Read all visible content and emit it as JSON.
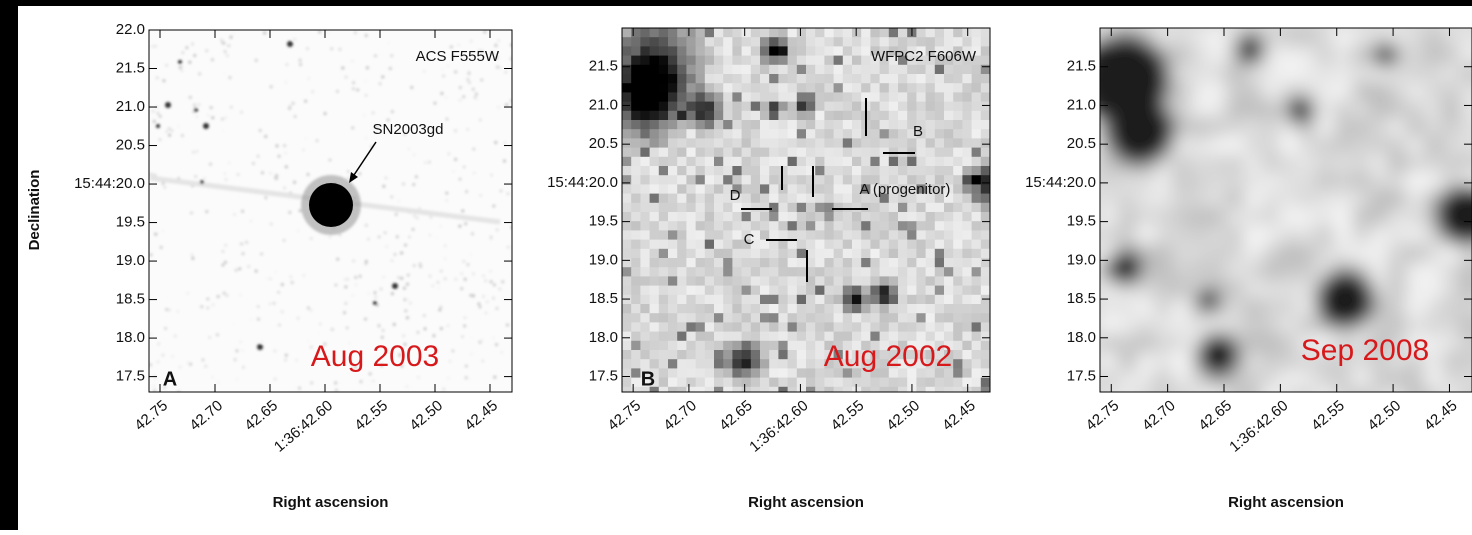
{
  "figure": {
    "ylabel": "Declination",
    "panels": [
      {
        "letter": "A",
        "instrument": "ACS F555W",
        "date": "Aug 2003",
        "xlabel": "Right ascension",
        "annotations": [
          "SN2003gd"
        ],
        "xlim": [
          42.76,
          42.43
        ],
        "ylim": [
          17.3,
          22.0
        ],
        "xticks": [
          42.75,
          {
            "value": 42.7,
            "label": "42.70"
          },
          42.65,
          {
            "value": 42.6,
            "label": "1:36:42.60"
          },
          42.55,
          {
            "value": 42.5,
            "label": "42.50"
          },
          42.45
        ],
        "yticks": [
          {
            "value": 22.0,
            "label": "22.0"
          },
          21.5,
          {
            "value": 21.0,
            "label": "21.0"
          },
          20.5,
          {
            "value": 20.0,
            "label": "15:44:20.0"
          },
          19.5,
          {
            "value": 19.0,
            "label": "19.0"
          },
          18.5,
          {
            "value": 18.0,
            "label": "18.0"
          },
          17.5
        ]
      },
      {
        "letter": "B",
        "instrument": "WFPC2 F606W",
        "date": "Aug 2002",
        "xlabel": "Right ascension",
        "annotations": [
          "A (progenitor)",
          "B",
          "C",
          "D"
        ],
        "xlim": [
          42.76,
          42.43
        ],
        "ylim": [
          17.3,
          22.0
        ],
        "xticks": [
          42.75,
          {
            "value": 42.7,
            "label": "42.70"
          },
          42.65,
          {
            "value": 42.6,
            "label": "1:36:42.60"
          },
          42.55,
          {
            "value": 42.5,
            "label": "42.50"
          },
          42.45
        ],
        "yticks": [
          21.5,
          {
            "value": 21.0,
            "label": "21.0"
          },
          20.5,
          {
            "value": 20.0,
            "label": "15:44:20.0"
          },
          19.5,
          {
            "value": 19.0,
            "label": "19.0"
          },
          18.5,
          {
            "value": 18.0,
            "label": "18.0"
          },
          17.5
        ]
      },
      {
        "date": "Sep 2008",
        "xlabel": "Right ascension",
        "xlim": [
          42.76,
          42.43
        ],
        "ylim": [
          17.3,
          22.0
        ],
        "xticks": [
          42.75,
          {
            "value": 42.7,
            "label": "42.70"
          },
          42.65,
          {
            "value": 42.6,
            "label": "1:36:42.60"
          },
          42.55,
          {
            "value": 42.5,
            "label": "42.50"
          },
          42.45
        ],
        "yticks": [
          21.5,
          {
            "value": 21.0,
            "label": "21.0"
          },
          20.5,
          {
            "value": 20.0,
            "label": "15:44:20.0"
          },
          19.5,
          {
            "value": 19.0,
            "label": "19.0"
          },
          18.5,
          {
            "value": 18.0,
            "label": "18.0"
          },
          17.5
        ]
      }
    ]
  }
}
